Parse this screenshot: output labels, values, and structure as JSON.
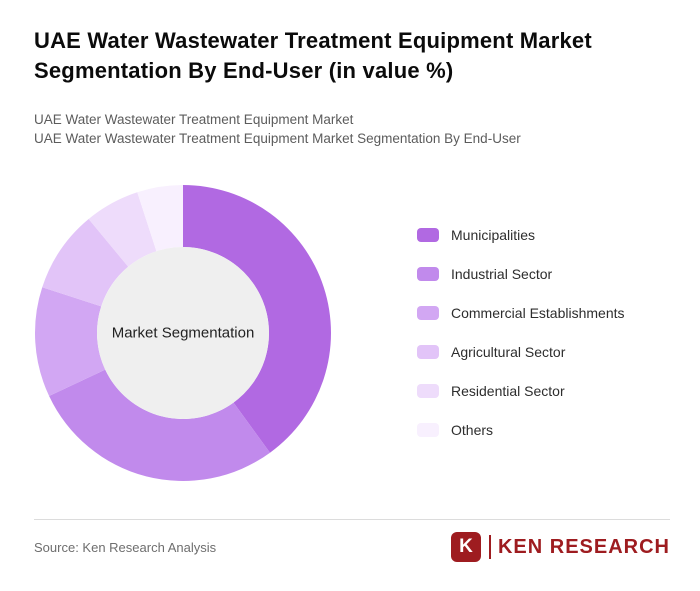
{
  "header": {
    "title": "UAE Water Wastewater Treatment Equipment Market Segmentation By End-User (in value %)",
    "subtitle1": "UAE Water Wastewater Treatment Equipment Market",
    "subtitle2": "UAE Water Wastewater Treatment Equipment Market Segmentation By End-User"
  },
  "chart_data": {
    "type": "pie",
    "donut": true,
    "center_label": "Market Segmentation",
    "center_fill": "#efefef",
    "categories": [
      "Municipalities",
      "Industrial Sector",
      "Commercial Establishments",
      "Agricultural Sector",
      "Residential Sector",
      "Others"
    ],
    "values": [
      40,
      28,
      12,
      9,
      6,
      5
    ],
    "colors": [
      "#b169e2",
      "#c18aec",
      "#d2a7f3",
      "#e2c4f8",
      "#eedcfb",
      "#f8f0fe"
    ],
    "legend_position": "right",
    "start_angle_deg": 0,
    "direction": "clockwise"
  },
  "footer": {
    "source": "Source: Ken Research Analysis",
    "logo_mark": "K",
    "logo_text": "KEN RESEARCH"
  }
}
